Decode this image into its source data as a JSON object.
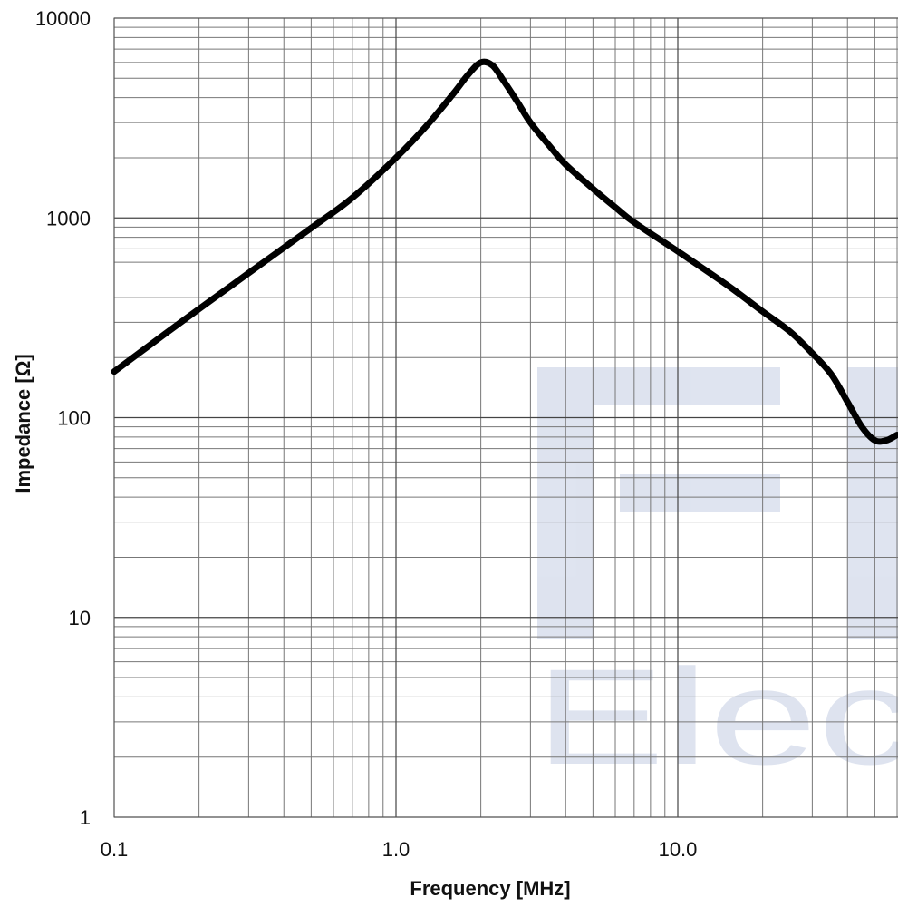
{
  "chart_data": {
    "type": "line",
    "xlabel": "Frequency [MHz]",
    "ylabel": "Impedance [Ω]",
    "x_scale": "log",
    "y_scale": "log",
    "xlim": [
      0.1,
      60
    ],
    "ylim": [
      1,
      10000
    ],
    "grid": true,
    "x_ticks": [
      {
        "value": 0.1,
        "label": "0.1"
      },
      {
        "value": 1,
        "label": "1.0"
      },
      {
        "value": 10,
        "label": "10.0"
      }
    ],
    "y_ticks": [
      {
        "value": 1,
        "label": "1"
      },
      {
        "value": 10,
        "label": "10"
      },
      {
        "value": 100,
        "label": "100"
      },
      {
        "value": 1000,
        "label": "1000"
      },
      {
        "value": 10000,
        "label": "10000"
      }
    ],
    "series": [
      {
        "color": "#000000",
        "x": [
          0.1,
          0.15,
          0.2,
          0.3,
          0.5,
          0.7,
          1.0,
          1.3,
          1.6,
          1.8,
          2.0,
          2.2,
          2.4,
          2.7,
          3.0,
          3.5,
          4.0,
          5.0,
          6.0,
          7.0,
          10.0,
          15.0,
          20.0,
          25.0,
          30.0,
          35.0,
          40.0,
          45.0,
          50.0,
          55.0,
          60.0
        ],
        "y": [
          170,
          260,
          350,
          530,
          890,
          1260,
          2000,
          2950,
          4200,
          5200,
          6000,
          5800,
          4900,
          3800,
          3000,
          2300,
          1850,
          1400,
          1130,
          950,
          680,
          460,
          340,
          270,
          210,
          165,
          120,
          90,
          77,
          77,
          82
        ]
      }
    ]
  },
  "watermark": {
    "text": "Elec",
    "color": "#dbe1ee"
  }
}
